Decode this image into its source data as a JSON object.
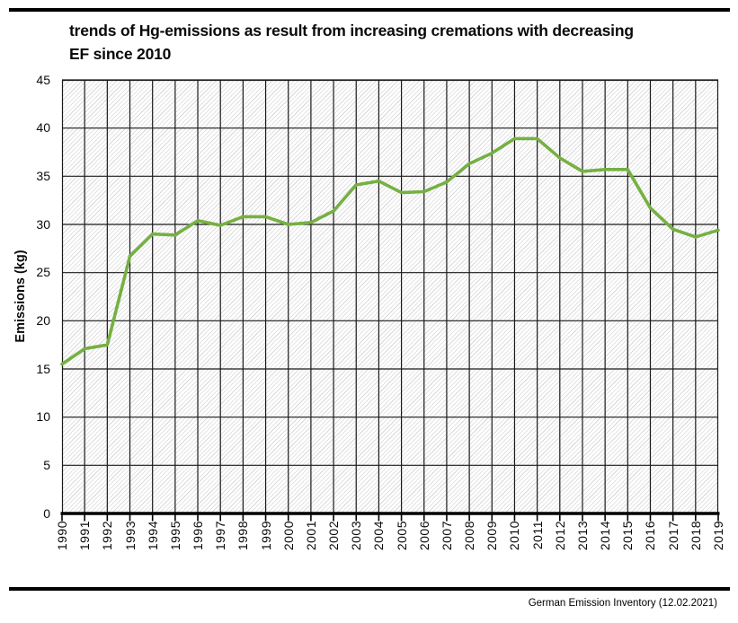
{
  "header": {
    "title_lines": [
      "trends of Hg-emissions as result from increasing cremations with decreasing",
      "EF since 2010"
    ]
  },
  "footer": {
    "source": "German Emission Inventory (12.02.2021)"
  },
  "chart_data": {
    "type": "line",
    "title": "trends of Hg-emissions as result from increasing cremations with decreasing EF since 2010",
    "xlabel": "",
    "ylabel": "Emissions (kg)",
    "x": [
      1990,
      1991,
      1992,
      1993,
      1994,
      1995,
      1996,
      1997,
      1998,
      1999,
      2000,
      2001,
      2002,
      2003,
      2004,
      2005,
      2006,
      2007,
      2008,
      2009,
      2010,
      2011,
      2012,
      2013,
      2014,
      2015,
      2016,
      2017,
      2018,
      2019
    ],
    "values": [
      15.5,
      17.1,
      17.5,
      26.7,
      29.0,
      28.9,
      30.4,
      29.9,
      30.8,
      30.8,
      30.0,
      30.2,
      31.4,
      34.1,
      34.5,
      33.3,
      33.4,
      34.4,
      36.3,
      37.4,
      38.9,
      38.9,
      36.9,
      35.5,
      35.7,
      35.7,
      31.7,
      29.5,
      28.7,
      29.4
    ],
    "ylim": [
      0,
      45
    ],
    "yticks": [
      0,
      5,
      10,
      15,
      20,
      25,
      30,
      35,
      40,
      45
    ],
    "grid": true,
    "legend_position": "none",
    "line_color": "#76b043",
    "grid_color": "#1a1a1a",
    "plot_hatch": "light-gray diagonal"
  }
}
